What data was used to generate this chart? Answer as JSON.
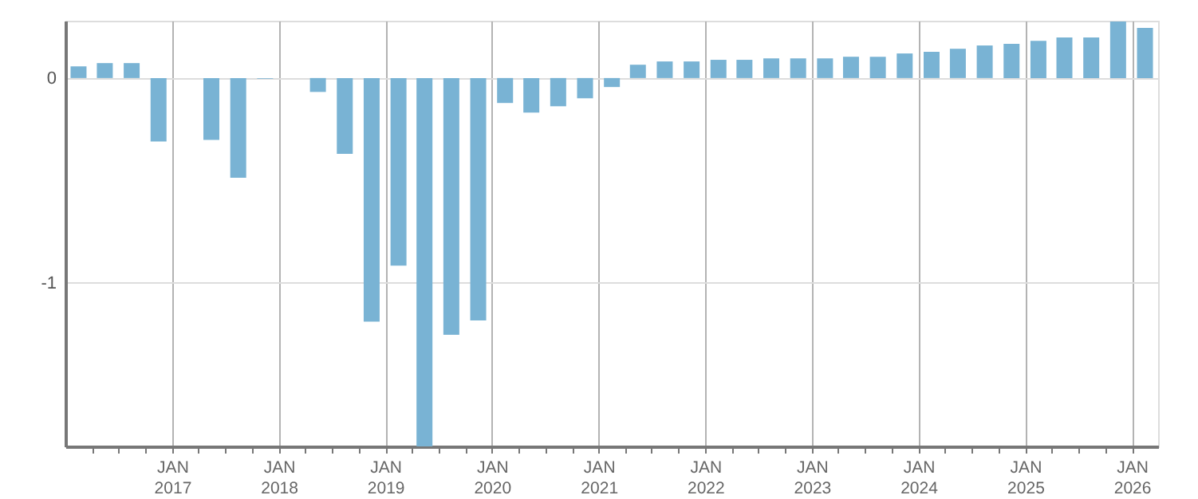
{
  "chart_data": {
    "type": "bar",
    "color": "#79b3d4",
    "grid": true,
    "x": [
      "2016-02-15",
      "2016-05-15",
      "2016-08-15",
      "2016-11-15",
      "2017-02-15",
      "2017-05-15",
      "2017-08-15",
      "2017-11-15",
      "2018-02-15",
      "2018-05-15",
      "2018-08-15",
      "2018-11-15",
      "2019-02-15",
      "2019-05-15",
      "2019-08-15",
      "2019-11-15",
      "2020-02-15",
      "2020-05-15",
      "2020-08-15",
      "2020-11-15",
      "2021-02-15",
      "2021-05-15",
      "2021-08-15",
      "2021-11-15",
      "2022-02-15",
      "2022-05-15",
      "2022-08-15",
      "2022-11-15",
      "2023-02-15",
      "2023-05-15",
      "2023-08-15",
      "2023-11-15",
      "2024-02-15",
      "2024-05-15",
      "2024-08-15",
      "2024-11-15",
      "2025-02-15",
      "2025-05-15",
      "2025-08-15",
      "2025-11-15",
      "2026-02-15"
    ],
    "values": [
      0.057,
      0.073,
      0.073,
      -0.31,
      null,
      -0.302,
      -0.487,
      -0.003,
      null,
      -0.068,
      -0.37,
      -1.19,
      -0.917,
      -1.8,
      -1.255,
      -1.185,
      -0.122,
      -0.169,
      -0.138,
      -0.099,
      -0.044,
      0.065,
      0.081,
      0.081,
      0.089,
      0.089,
      0.096,
      0.096,
      0.096,
      0.104,
      0.104,
      0.12,
      0.128,
      0.143,
      0.159,
      0.167,
      0.182,
      0.198,
      0.198,
      0.276,
      0.245
    ],
    "xlim": [
      "2016-01",
      "2026-04"
    ],
    "xticks": [
      {
        "value": "2016-04",
        "label": null
      },
      {
        "value": "2016-07",
        "label": null
      },
      {
        "value": "2016-10",
        "label": null
      },
      {
        "value": "2017-01",
        "label": "JAN\n2017"
      },
      {
        "value": "2017-04",
        "label": null
      },
      {
        "value": "2017-07",
        "label": null
      },
      {
        "value": "2017-10",
        "label": null
      },
      {
        "value": "2018-01",
        "label": "JAN\n2018"
      },
      {
        "value": "2018-04",
        "label": null
      },
      {
        "value": "2018-07",
        "label": null
      },
      {
        "value": "2018-10",
        "label": null
      },
      {
        "value": "2019-01",
        "label": "JAN\n2019"
      },
      {
        "value": "2019-04",
        "label": null
      },
      {
        "value": "2019-07",
        "label": null
      },
      {
        "value": "2019-10",
        "label": null
      },
      {
        "value": "2020-01",
        "label": "JAN\n2020"
      },
      {
        "value": "2020-04",
        "label": null
      },
      {
        "value": "2020-07",
        "label": null
      },
      {
        "value": "2020-10",
        "label": null
      },
      {
        "value": "2021-01",
        "label": "JAN\n2021"
      },
      {
        "value": "2021-04",
        "label": null
      },
      {
        "value": "2021-07",
        "label": null
      },
      {
        "value": "2021-10",
        "label": null
      },
      {
        "value": "2022-01",
        "label": "JAN\n2022"
      },
      {
        "value": "2022-04",
        "label": null
      },
      {
        "value": "2022-07",
        "label": null
      },
      {
        "value": "2022-10",
        "label": null
      },
      {
        "value": "2023-01",
        "label": "JAN\n2023"
      },
      {
        "value": "2023-04",
        "label": null
      },
      {
        "value": "2023-07",
        "label": null
      },
      {
        "value": "2023-10",
        "label": null
      },
      {
        "value": "2024-01",
        "label": "JAN\n2024"
      },
      {
        "value": "2024-04",
        "label": null
      },
      {
        "value": "2024-07",
        "label": null
      },
      {
        "value": "2024-10",
        "label": null
      },
      {
        "value": "2025-01",
        "label": "JAN\n2025"
      },
      {
        "value": "2025-04",
        "label": null
      },
      {
        "value": "2025-07",
        "label": null
      },
      {
        "value": "2025-10",
        "label": null
      },
      {
        "value": "2026-01",
        "label": "JAN\n2026"
      }
    ],
    "ylim": [
      -1.8,
      0.28
    ],
    "yticks": [
      -1,
      0
    ]
  }
}
